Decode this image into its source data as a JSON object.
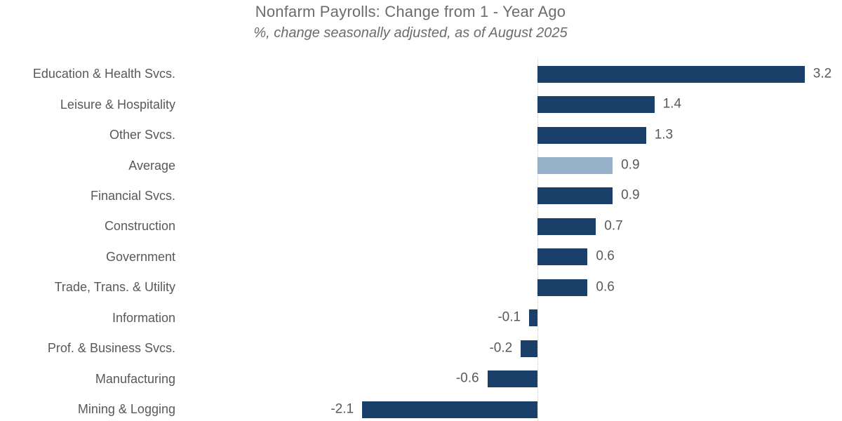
{
  "header": {
    "title": "Nonfarm Payrolls: Change from 1 - Year Ago",
    "subtitle": "%, change seasonally adjusted, as of August 2025"
  },
  "chart_data": {
    "type": "bar",
    "orientation": "horizontal",
    "categories": [
      "Education & Health Svcs.",
      "Leisure & Hospitality",
      "Other Svcs.",
      "Average",
      "Financial Svcs.",
      "Construction",
      "Government",
      "Trade, Trans. & Utility",
      "Information",
      "Prof. & Business Svcs.",
      "Manufacturing",
      "Mining & Logging"
    ],
    "values": [
      3.2,
      1.4,
      1.3,
      0.9,
      0.9,
      0.7,
      0.6,
      0.6,
      -0.1,
      -0.2,
      -0.6,
      -2.1
    ],
    "value_labels": [
      "3.2",
      "1.4",
      "1.3",
      "0.9",
      "0.9",
      "0.7",
      "0.6",
      "0.6",
      "-0.1",
      "-0.2",
      "-0.6",
      "-2.1"
    ],
    "highlight_category": "Average",
    "highlight_index": 3,
    "baseline": 0,
    "xlim": [
      -2.6,
      3.7
    ],
    "grid": "zero-line-only",
    "legend": "none",
    "colors": {
      "bar": "#1a406a",
      "highlight_bar": "#97b1c8",
      "zero_line": "#c8c8c8",
      "category_text": "#595959",
      "value_text": "#595959",
      "title_text": "#6c6c6c"
    }
  }
}
